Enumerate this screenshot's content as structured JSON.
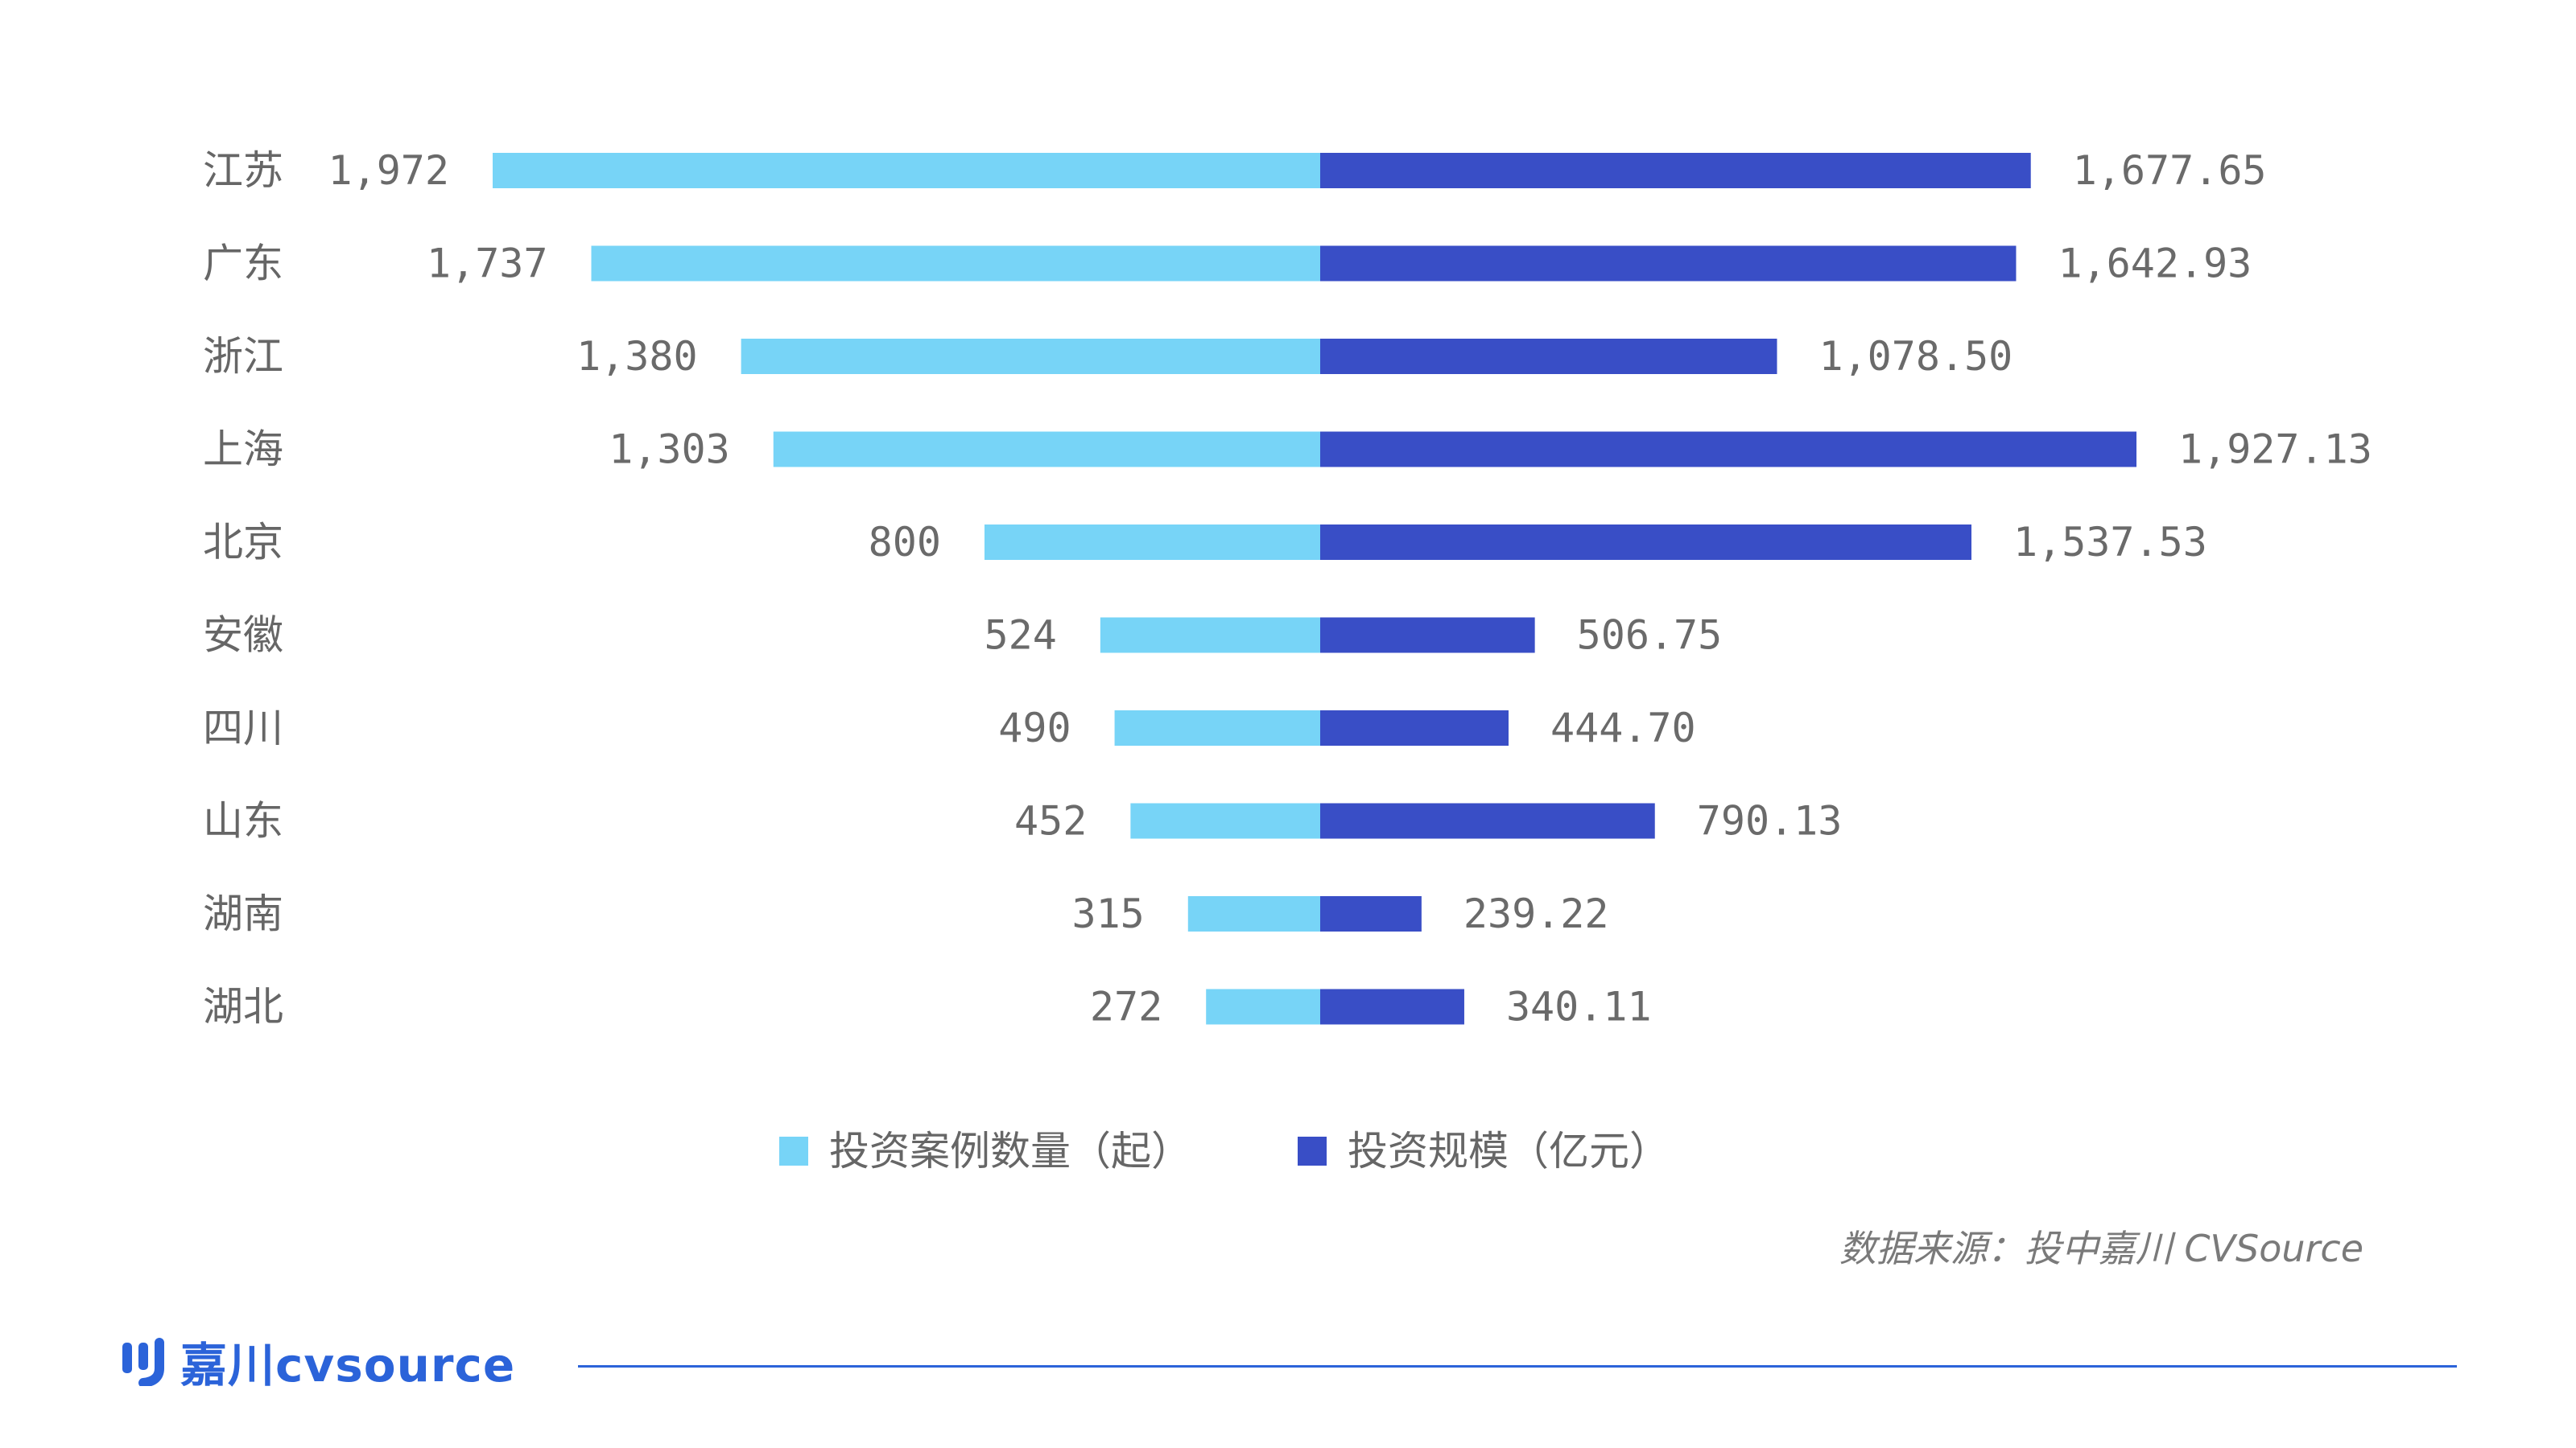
{
  "chart_data": {
    "type": "bar",
    "layout": "diverging-horizontal",
    "categories": [
      "江苏",
      "广东",
      "浙江",
      "上海",
      "北京",
      "安徽",
      "四川",
      "山东",
      "湖南",
      "湖北"
    ],
    "series": [
      {
        "name": "投资案例数量（起）",
        "side": "left",
        "color": "#77d4f7",
        "values": [
          1972,
          1737,
          1380,
          1303,
          800,
          524,
          490,
          452,
          315,
          272
        ],
        "labels": [
          "1,972",
          "1,737",
          "1,380",
          "1,303",
          "800",
          "524",
          "490",
          "452",
          "315",
          "272"
        ]
      },
      {
        "name": "投资规模（亿元）",
        "side": "right",
        "color": "#394ec6",
        "values": [
          1677.65,
          1642.93,
          1078.5,
          1927.13,
          1537.53,
          506.75,
          444.7,
          790.13,
          239.22,
          340.11
        ],
        "labels": [
          "1,677.65",
          "1,642.93",
          "1,078.50",
          "1,927.13",
          "1,537.53",
          "506.75",
          "444.70",
          "790.13",
          "239.22",
          "340.11"
        ]
      }
    ],
    "legend_position": "bottom-center",
    "grid": false,
    "source": "数据来源：投中嘉川 CVSource"
  },
  "footer": {
    "brand_cn": "嘉川",
    "brand_en": "cvsource",
    "accent_color": "#2b63d9"
  }
}
